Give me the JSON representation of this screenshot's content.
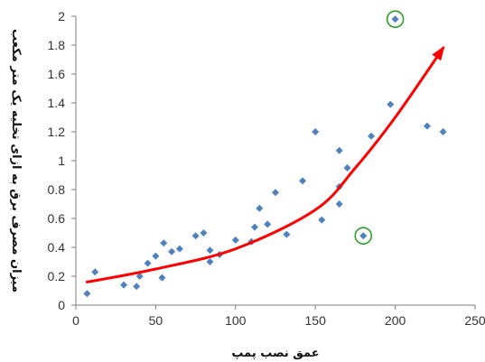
{
  "chart_data": {
    "type": "scatter",
    "title": "",
    "xlabel": "عمق نصب پمپ",
    "ylabel": "میزان مصرف برق به ازای تخلیه یک متر مکعب",
    "xlim": [
      0,
      250
    ],
    "ylim": [
      0,
      2
    ],
    "x_ticks": [
      "0",
      "50",
      "100",
      "150",
      "200",
      "250"
    ],
    "y_ticks": [
      "0",
      "0.2",
      "0.4",
      "0.6",
      "0.8",
      "1",
      "1.2",
      "1.4",
      "1.6",
      "1.8",
      "2"
    ],
    "grid": false,
    "legend": "none",
    "marker_color": "#4f81bd",
    "highlight_color": "#2ca02c",
    "trend_color": "#ff0000",
    "series": [
      {
        "values": [
          [
            7,
            0.08
          ],
          [
            12,
            0.23
          ],
          [
            30,
            0.14
          ],
          [
            38,
            0.13
          ],
          [
            40,
            0.2
          ],
          [
            45,
            0.29
          ],
          [
            50,
            0.34
          ],
          [
            54,
            0.19
          ],
          [
            55,
            0.43
          ],
          [
            60,
            0.37
          ],
          [
            65,
            0.39
          ],
          [
            75,
            0.48
          ],
          [
            80,
            0.5
          ],
          [
            84,
            0.3
          ],
          [
            84,
            0.38
          ],
          [
            90,
            0.35
          ],
          [
            100,
            0.45
          ],
          [
            110,
            0.44
          ],
          [
            112,
            0.54
          ],
          [
            115,
            0.67
          ],
          [
            120,
            0.56
          ],
          [
            125,
            0.78
          ],
          [
            132,
            0.49
          ],
          [
            142,
            0.86
          ],
          [
            150,
            1.2
          ],
          [
            154,
            0.59
          ],
          [
            165,
            0.7
          ],
          [
            165,
            0.82
          ],
          [
            165,
            1.07
          ],
          [
            170,
            0.95
          ],
          [
            180,
            0.48
          ],
          [
            185,
            1.17
          ],
          [
            197,
            1.39
          ],
          [
            200,
            1.98
          ],
          [
            220,
            1.24
          ],
          [
            230,
            1.2
          ]
        ]
      }
    ],
    "highlighted_points": [
      [
        180,
        0.48
      ],
      [
        200,
        1.98
      ]
    ],
    "trendline": {
      "type": "exponential",
      "points": [
        [
          7,
          0.16
        ],
        [
          50,
          0.25
        ],
        [
          100,
          0.39
        ],
        [
          150,
          0.66
        ],
        [
          175,
          0.95
        ],
        [
          200,
          1.3
        ],
        [
          230,
          1.78
        ]
      ]
    }
  }
}
